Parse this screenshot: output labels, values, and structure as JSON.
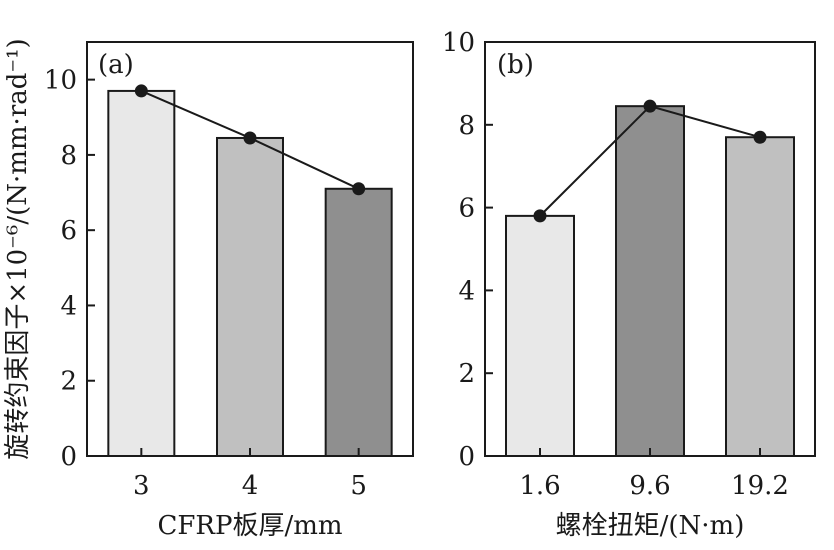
{
  "chart_data": [
    {
      "type": "bar",
      "panel_label": "(a)",
      "categories": [
        "3",
        "4",
        "5"
      ],
      "values": [
        9.7,
        8.45,
        7.1
      ],
      "bar_colors": [
        "#e8e8e8",
        "#c0c0c0",
        "#8f8f8f"
      ],
      "line_overlay": true,
      "xlabel": "CFRP板厚/mm",
      "ylabel": "旋转约束因子×10⁻⁶/(N·mm·rad⁻¹)",
      "ylim": [
        0,
        11
      ],
      "yticks": [
        0,
        2,
        4,
        6,
        8,
        10
      ]
    },
    {
      "type": "bar",
      "panel_label": "(b)",
      "categories": [
        "1.6",
        "9.6",
        "19.2"
      ],
      "values": [
        5.8,
        8.45,
        7.7
      ],
      "bar_colors": [
        "#e8e8e8",
        "#8f8f8f",
        "#c0c0c0"
      ],
      "line_overlay": true,
      "xlabel": "螺栓扭矩/(N·m)",
      "ylabel": "",
      "ylim": [
        0,
        10
      ],
      "yticks": [
        0,
        2,
        4,
        6,
        8,
        10
      ]
    }
  ]
}
